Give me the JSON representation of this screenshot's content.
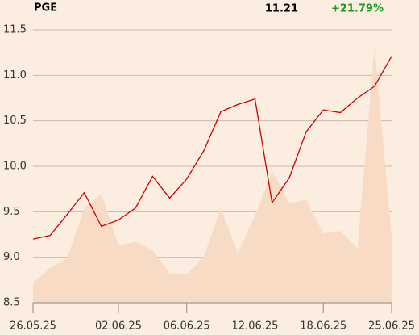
{
  "header": {
    "symbol": "PGE",
    "price": "11.21",
    "change": "+21.79%"
  },
  "chart_data": {
    "type": "line",
    "categories": [
      "26.05.25",
      null,
      null,
      null,
      null,
      "02.06.25",
      null,
      null,
      null,
      "06.06.25",
      null,
      null,
      null,
      "12.06.25",
      null,
      null,
      null,
      "18.06.25",
      null,
      null,
      null,
      "25.06.25"
    ],
    "series": [
      {
        "style": "area",
        "color": "#f8dbc5",
        "values": [
          8.72,
          8.88,
          8.99,
          9.54,
          9.7,
          9.13,
          9.17,
          9.08,
          8.82,
          8.81,
          9.01,
          9.54,
          9.05,
          9.46,
          9.95,
          9.6,
          9.63,
          9.26,
          9.29,
          9.1,
          11.32,
          9.24
        ]
      },
      {
        "style": "line",
        "color": "#cc0000",
        "values": [
          9.2,
          9.24,
          9.47,
          9.71,
          9.34,
          9.41,
          9.54,
          9.89,
          9.65,
          9.86,
          10.17,
          10.6,
          10.68,
          10.74,
          9.6,
          9.87,
          10.38,
          10.62,
          10.59,
          10.75,
          10.88,
          11.21
        ]
      }
    ],
    "ylim": [
      8.5,
      11.5
    ],
    "yticks": [
      8.5,
      {
        "value": 9,
        "label": "9.0"
      },
      9.5,
      {
        "value": 10,
        "label": "10.0"
      },
      10.5,
      {
        "value": 11,
        "label": "11.0"
      },
      11.5
    ],
    "grid": true
  }
}
